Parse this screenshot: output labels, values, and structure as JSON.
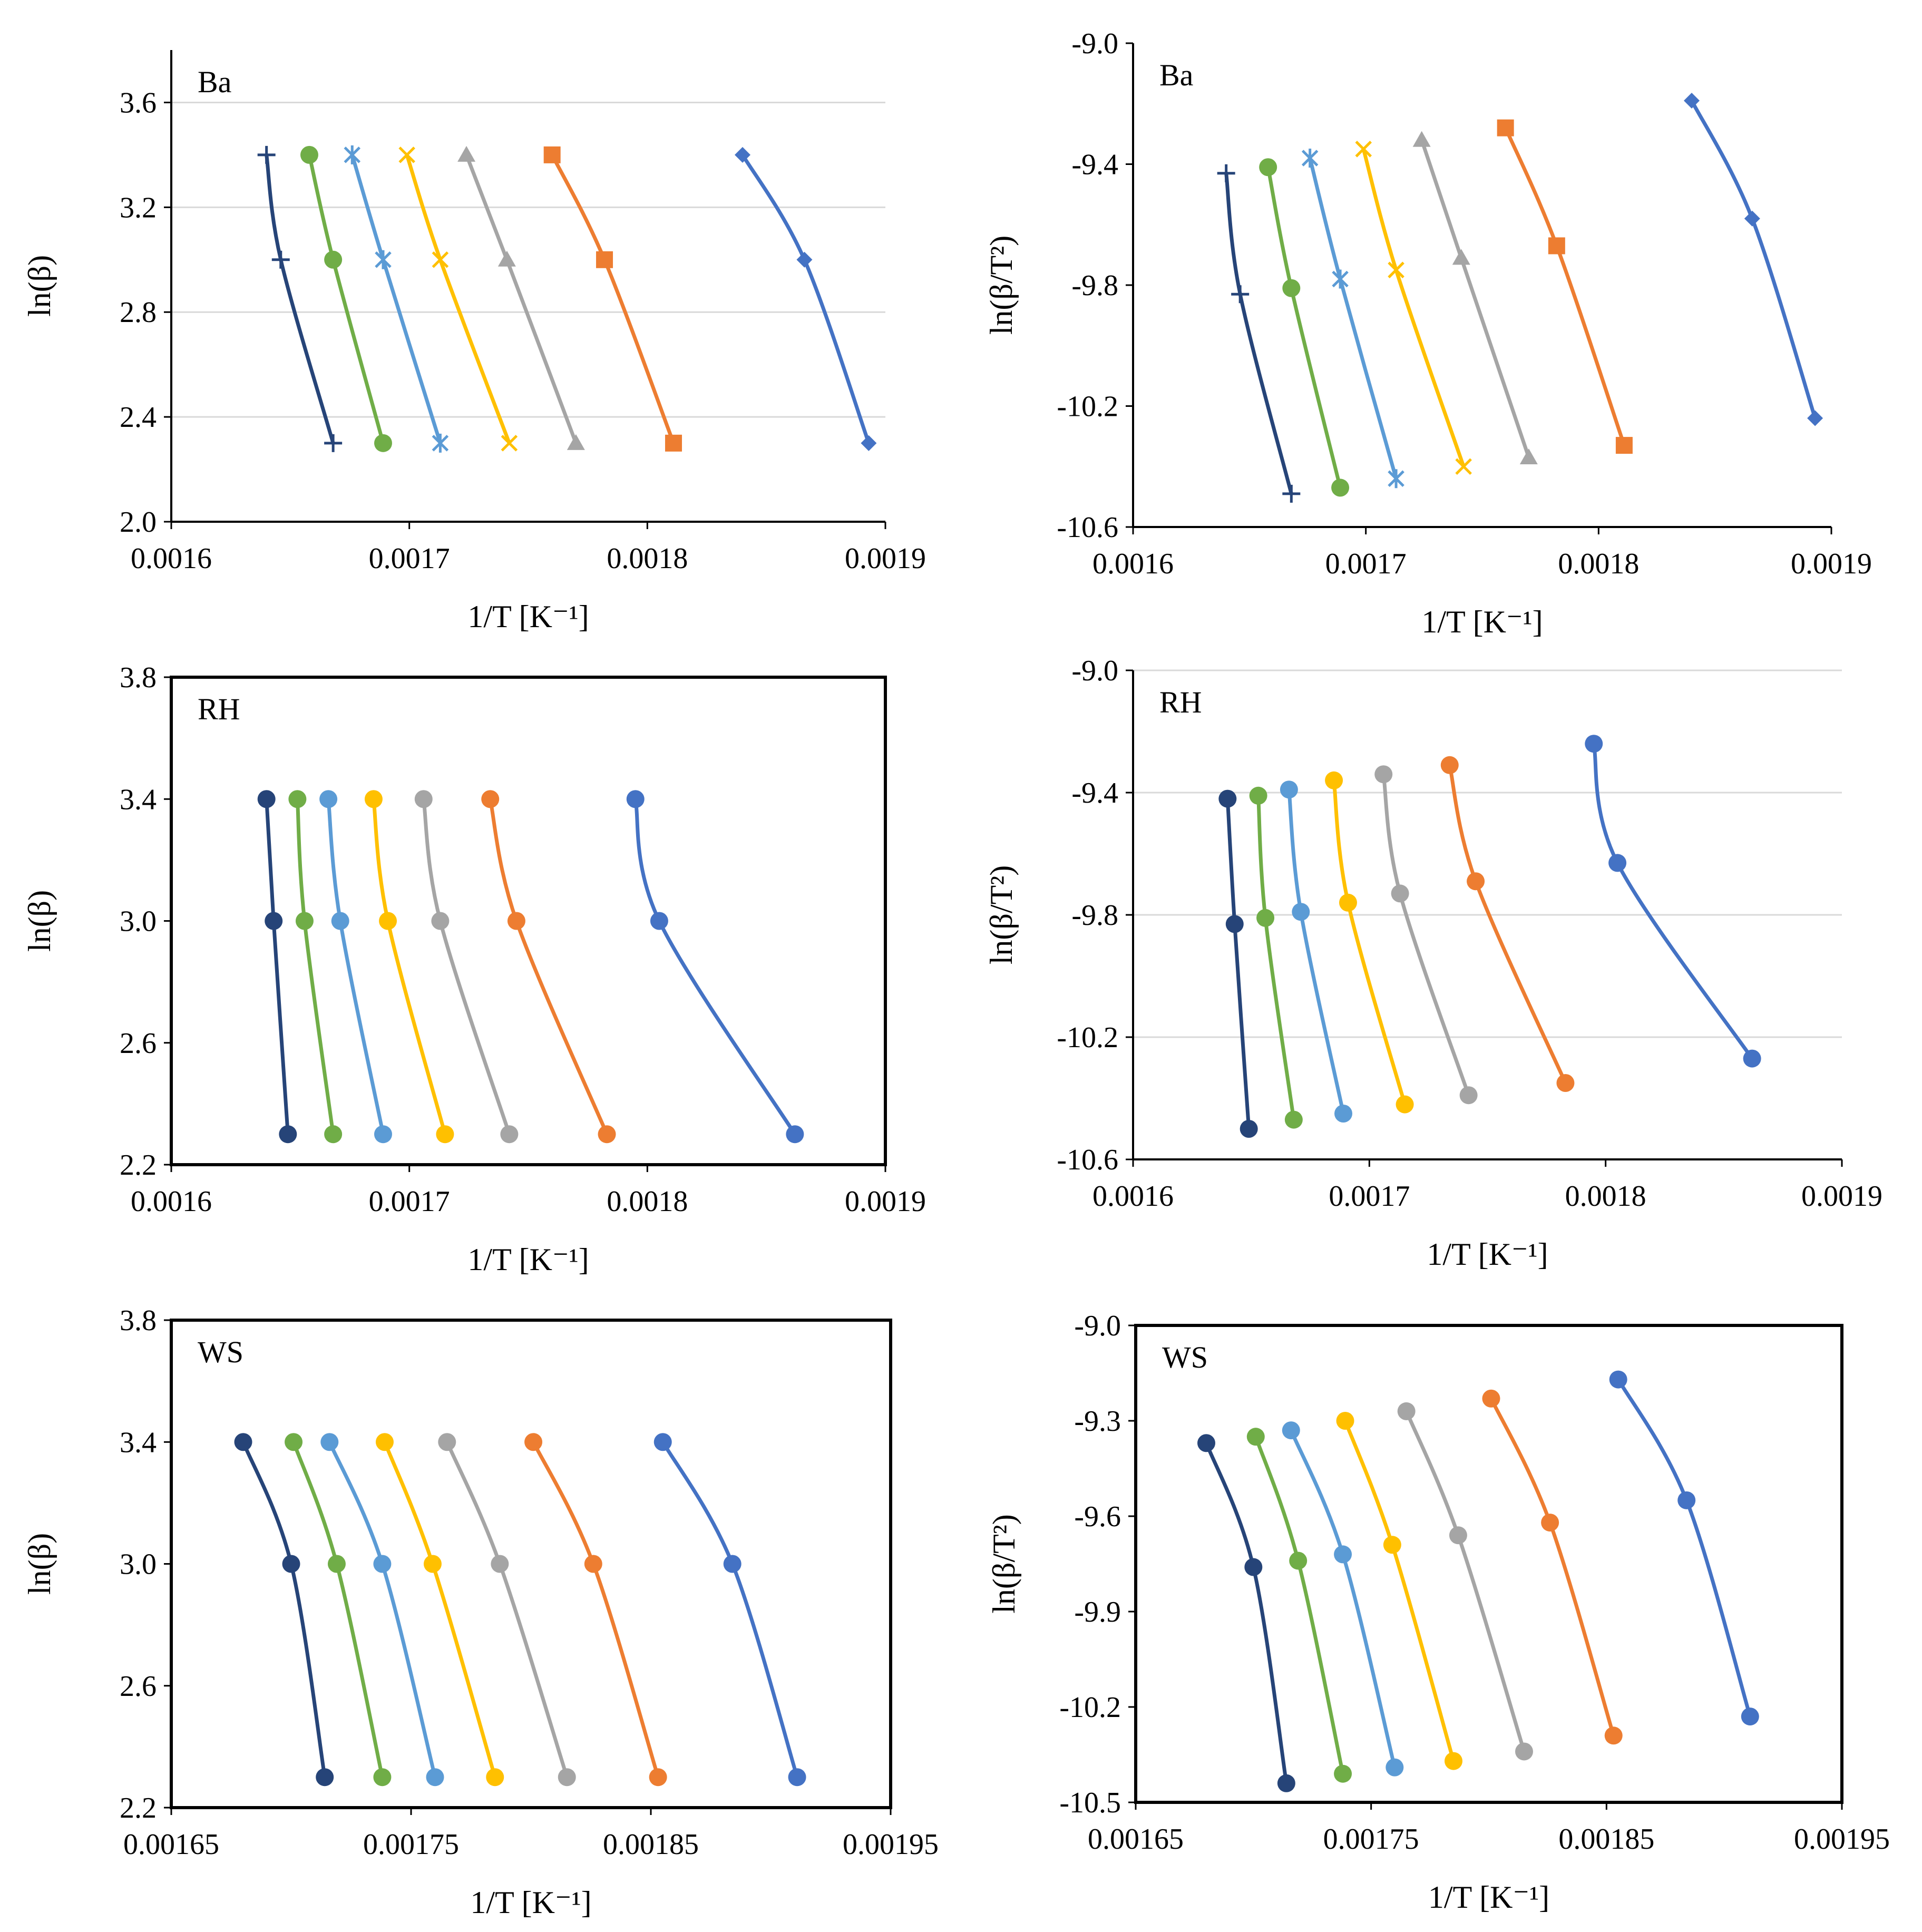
{
  "figure_title": "",
  "colors": {
    "s1": "#4472C4",
    "s2": "#ED7D31",
    "s3": "#A5A5A5",
    "s4": "#FFC000",
    "s5": "#5B9BD5",
    "s6": "#70AD47",
    "s7": "#264478"
  },
  "chart_data": [
    {
      "type": "line",
      "panel": "Ba",
      "xlabel": "1/T [K⁻¹]",
      "ylabel": "ln(β)",
      "xlim": [
        0.0016,
        0.0019
      ],
      "ylim": [
        2.0,
        3.8
      ],
      "xticks": [
        "0.0016",
        "0.0017",
        "0.0018",
        "0.0019"
      ],
      "yticks": [
        "2.0",
        "2.4",
        "2.8",
        "3.2",
        "3.6"
      ],
      "grid": true,
      "box": false,
      "series": [
        {
          "name": "series-1",
          "color": "#4472C4",
          "marker": "diamond",
          "x": [
            0.00184,
            0.001866,
            0.001893
          ],
          "y": [
            3.4,
            3.0,
            2.3
          ]
        },
        {
          "name": "series-2",
          "color": "#ED7D31",
          "marker": "square",
          "x": [
            0.00176,
            0.001782,
            0.001811
          ],
          "y": [
            3.4,
            3.0,
            2.3
          ]
        },
        {
          "name": "series-3",
          "color": "#A5A5A5",
          "marker": "triangle",
          "x": [
            0.001724,
            0.001741,
            0.00177
          ],
          "y": [
            3.4,
            3.0,
            2.3
          ]
        },
        {
          "name": "series-4",
          "color": "#FFC000",
          "marker": "x",
          "x": [
            0.001699,
            0.001713,
            0.001742
          ],
          "y": [
            3.4,
            3.0,
            2.3
          ]
        },
        {
          "name": "series-5",
          "color": "#5B9BD5",
          "marker": "star",
          "x": [
            0.001676,
            0.001689,
            0.001713
          ],
          "y": [
            3.4,
            3.0,
            2.3
          ]
        },
        {
          "name": "series-6",
          "color": "#70AD47",
          "marker": "circle",
          "x": [
            0.001658,
            0.001668,
            0.001689
          ],
          "y": [
            3.4,
            3.0,
            2.3
          ]
        },
        {
          "name": "series-7",
          "color": "#264478",
          "marker": "plus",
          "x": [
            0.00164,
            0.001646,
            0.001668
          ],
          "y": [
            3.4,
            3.0,
            2.3
          ]
        }
      ]
    },
    {
      "type": "line",
      "panel": "Ba",
      "xlabel": "1/T [K⁻¹]",
      "ylabel": "ln(β/T²)",
      "xlim": [
        0.0016,
        0.0019
      ],
      "ylim": [
        -10.6,
        -9.0
      ],
      "xticks": [
        "0.0016",
        "0.0017",
        "0.0018",
        "0.0019"
      ],
      "yticks": [
        "-10.6",
        "-10.2",
        "-9.8",
        "-9.4",
        "-9.0"
      ],
      "grid": false,
      "box": false,
      "series": [
        {
          "name": "series-1",
          "color": "#4472C4",
          "marker": "diamond",
          "x": [
            0.00184,
            0.001866,
            0.001893
          ],
          "y": [
            -9.19,
            -9.58,
            -10.24
          ]
        },
        {
          "name": "series-2",
          "color": "#ED7D31",
          "marker": "square",
          "x": [
            0.00176,
            0.001782,
            0.001811
          ],
          "y": [
            -9.28,
            -9.67,
            -10.33
          ]
        },
        {
          "name": "series-3",
          "color": "#A5A5A5",
          "marker": "triangle",
          "x": [
            0.001724,
            0.001741,
            0.00177
          ],
          "y": [
            -9.32,
            -9.71,
            -10.37
          ]
        },
        {
          "name": "series-4",
          "color": "#FFC000",
          "marker": "x",
          "x": [
            0.001699,
            0.001713,
            0.001742
          ],
          "y": [
            -9.35,
            -9.75,
            -10.4
          ]
        },
        {
          "name": "series-5",
          "color": "#5B9BD5",
          "marker": "star",
          "x": [
            0.001676,
            0.001689,
            0.001713
          ],
          "y": [
            -9.38,
            -9.78,
            -10.44
          ]
        },
        {
          "name": "series-6",
          "color": "#70AD47",
          "marker": "circle",
          "x": [
            0.001658,
            0.001668,
            0.001689
          ],
          "y": [
            -9.41,
            -9.81,
            -10.47
          ]
        },
        {
          "name": "series-7",
          "color": "#264478",
          "marker": "plus",
          "x": [
            0.00164,
            0.001646,
            0.001668
          ],
          "y": [
            -9.43,
            -9.83,
            -10.49
          ]
        }
      ]
    },
    {
      "type": "line",
      "panel": "RH",
      "xlabel": "1/T [K⁻¹]",
      "ylabel": "ln(β)",
      "xlim": [
        0.0016,
        0.0019
      ],
      "ylim": [
        2.2,
        3.8
      ],
      "xticks": [
        "0.0016",
        "0.0017",
        "0.0018",
        "0.0019"
      ],
      "yticks": [
        "2.2",
        "2.6",
        "3.0",
        "3.4",
        "3.8"
      ],
      "grid": false,
      "box": true,
      "series": [
        {
          "name": "series-1",
          "color": "#4472C4",
          "marker": "circle",
          "x": [
            0.001795,
            0.001805,
            0.001862
          ],
          "y": [
            3.4,
            3.0,
            2.3
          ]
        },
        {
          "name": "series-2",
          "color": "#ED7D31",
          "marker": "circle",
          "x": [
            0.001734,
            0.001745,
            0.001783
          ],
          "y": [
            3.4,
            3.0,
            2.3
          ]
        },
        {
          "name": "series-3",
          "color": "#A5A5A5",
          "marker": "circle",
          "x": [
            0.001706,
            0.001713,
            0.001742
          ],
          "y": [
            3.4,
            3.0,
            2.3
          ]
        },
        {
          "name": "series-4",
          "color": "#FFC000",
          "marker": "circle",
          "x": [
            0.001685,
            0.001691,
            0.001715
          ],
          "y": [
            3.4,
            3.0,
            2.3
          ]
        },
        {
          "name": "series-5",
          "color": "#5B9BD5",
          "marker": "circle",
          "x": [
            0.001666,
            0.001671,
            0.001689
          ],
          "y": [
            3.4,
            3.0,
            2.3
          ]
        },
        {
          "name": "series-6",
          "color": "#70AD47",
          "marker": "circle",
          "x": [
            0.001653,
            0.001656,
            0.001668
          ],
          "y": [
            3.4,
            3.0,
            2.3
          ]
        },
        {
          "name": "series-7",
          "color": "#264478",
          "marker": "circle",
          "x": [
            0.00164,
            0.001643,
            0.001649
          ],
          "y": [
            3.4,
            3.0,
            2.3
          ]
        }
      ]
    },
    {
      "type": "line",
      "panel": "RH",
      "xlabel": "1/T [K⁻¹]",
      "ylabel": "ln(β/T²)",
      "xlim": [
        0.0016,
        0.0019
      ],
      "ylim": [
        -10.6,
        -9.0
      ],
      "xticks": [
        "0.0016",
        "0.0017",
        "0.0018",
        "0.0019"
      ],
      "yticks": [
        "-10.6",
        "-10.2",
        "-9.8",
        "-9.4",
        "-9.0"
      ],
      "grid": true,
      "box": false,
      "series": [
        {
          "name": "series-1",
          "color": "#4472C4",
          "marker": "circle",
          "x": [
            0.001795,
            0.001805,
            0.001862
          ],
          "y": [
            -9.24,
            -9.63,
            -10.27
          ]
        },
        {
          "name": "series-2",
          "color": "#ED7D31",
          "marker": "circle",
          "x": [
            0.001734,
            0.001745,
            0.001783
          ],
          "y": [
            -9.31,
            -9.69,
            -10.35
          ]
        },
        {
          "name": "series-3",
          "color": "#A5A5A5",
          "marker": "circle",
          "x": [
            0.001706,
            0.001713,
            0.001742
          ],
          "y": [
            -9.34,
            -9.73,
            -10.39
          ]
        },
        {
          "name": "series-4",
          "color": "#FFC000",
          "marker": "circle",
          "x": [
            0.001685,
            0.001691,
            0.001715
          ],
          "y": [
            -9.36,
            -9.76,
            -10.42
          ]
        },
        {
          "name": "series-5",
          "color": "#5B9BD5",
          "marker": "circle",
          "x": [
            0.001666,
            0.001671,
            0.001689
          ],
          "y": [
            -9.39,
            -9.79,
            -10.45
          ]
        },
        {
          "name": "series-6",
          "color": "#70AD47",
          "marker": "circle",
          "x": [
            0.001653,
            0.001656,
            0.001668
          ],
          "y": [
            -9.41,
            -9.81,
            -10.47
          ]
        },
        {
          "name": "series-7",
          "color": "#264478",
          "marker": "circle",
          "x": [
            0.00164,
            0.001643,
            0.001649
          ],
          "y": [
            -9.42,
            -9.83,
            -10.5
          ]
        }
      ]
    },
    {
      "type": "line",
      "panel": "WS",
      "xlabel": "1/T [K⁻¹]",
      "ylabel": "ln(β)",
      "xlim": [
        0.00165,
        0.00195
      ],
      "ylim": [
        2.2,
        3.8
      ],
      "xticks": [
        "0.00165",
        "0.00175",
        "0.00185",
        "0.00195"
      ],
      "yticks": [
        "2.2",
        "2.6",
        "3.0",
        "3.4",
        "3.8"
      ],
      "grid": false,
      "box": true,
      "series": [
        {
          "name": "series-1",
          "color": "#4472C4",
          "marker": "circle",
          "x": [
            0.001855,
            0.001884,
            0.001911
          ],
          "y": [
            3.4,
            3.0,
            2.3
          ]
        },
        {
          "name": "series-2",
          "color": "#ED7D31",
          "marker": "circle",
          "x": [
            0.001801,
            0.001826,
            0.001853
          ],
          "y": [
            3.4,
            3.0,
            2.3
          ]
        },
        {
          "name": "series-3",
          "color": "#A5A5A5",
          "marker": "circle",
          "x": [
            0.001765,
            0.001787,
            0.001815
          ],
          "y": [
            3.4,
            3.0,
            2.3
          ]
        },
        {
          "name": "series-4",
          "color": "#FFC000",
          "marker": "circle",
          "x": [
            0.001739,
            0.001759,
            0.001785
          ],
          "y": [
            3.4,
            3.0,
            2.3
          ]
        },
        {
          "name": "series-5",
          "color": "#5B9BD5",
          "marker": "circle",
          "x": [
            0.001716,
            0.001738,
            0.00176
          ],
          "y": [
            3.4,
            3.0,
            2.3
          ]
        },
        {
          "name": "series-6",
          "color": "#70AD47",
          "marker": "circle",
          "x": [
            0.001701,
            0.001719,
            0.001738
          ],
          "y": [
            3.4,
            3.0,
            2.3
          ]
        },
        {
          "name": "series-7",
          "color": "#264478",
          "marker": "circle",
          "x": [
            0.00168,
            0.0017,
            0.001714
          ],
          "y": [
            3.4,
            3.0,
            2.3
          ]
        }
      ]
    },
    {
      "type": "line",
      "panel": "WS",
      "xlabel": "1/T [K⁻¹]",
      "ylabel": "ln(β/T²)",
      "xlim": [
        0.00165,
        0.00195
      ],
      "ylim": [
        -10.5,
        -9.0
      ],
      "xticks": [
        "0.00165",
        "0.00175",
        "0.00185",
        "0.00195"
      ],
      "yticks": [
        "-10.5",
        "-10.2",
        "-9.9",
        "-9.6",
        "-9.3",
        "-9.0"
      ],
      "grid": false,
      "box": true,
      "series": [
        {
          "name": "series-1",
          "color": "#4472C4",
          "marker": "circle",
          "x": [
            0.001855,
            0.001884,
            0.001911
          ],
          "y": [
            -9.17,
            -9.55,
            -10.23
          ]
        },
        {
          "name": "series-2",
          "color": "#ED7D31",
          "marker": "circle",
          "x": [
            0.001801,
            0.001826,
            0.001853
          ],
          "y": [
            -9.23,
            -9.62,
            -10.29
          ]
        },
        {
          "name": "series-3",
          "color": "#A5A5A5",
          "marker": "circle",
          "x": [
            0.001765,
            0.001787,
            0.001815
          ],
          "y": [
            -9.27,
            -9.66,
            -10.34
          ]
        },
        {
          "name": "series-4",
          "color": "#FFC000",
          "marker": "circle",
          "x": [
            0.001739,
            0.001759,
            0.001785
          ],
          "y": [
            -9.3,
            -9.69,
            -10.37
          ]
        },
        {
          "name": "series-5",
          "color": "#5B9BD5",
          "marker": "circle",
          "x": [
            0.001716,
            0.001738,
            0.00176
          ],
          "y": [
            -9.33,
            -9.72,
            -10.39
          ]
        },
        {
          "name": "series-6",
          "color": "#70AD47",
          "marker": "circle",
          "x": [
            0.001701,
            0.001719,
            0.001738
          ],
          "y": [
            -9.35,
            -9.74,
            -10.41
          ]
        },
        {
          "name": "series-7",
          "color": "#264478",
          "marker": "circle",
          "x": [
            0.00168,
            0.0017,
            0.001714
          ],
          "y": [
            -9.37,
            -9.76,
            -10.44
          ]
        }
      ]
    }
  ]
}
